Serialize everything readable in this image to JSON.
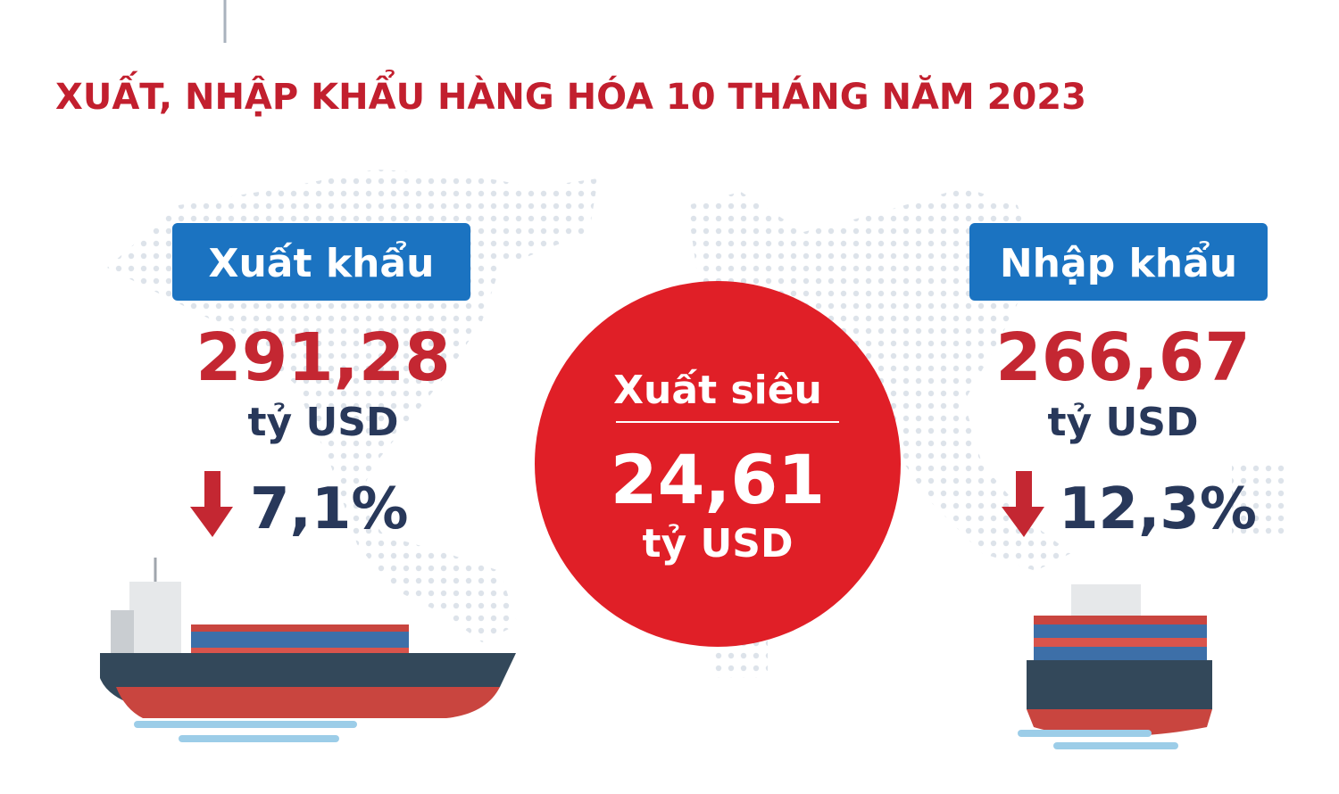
{
  "title": "XUẤT, NHẬP KHẨU HÀNG HÓA 10 THÁNG NĂM 2023",
  "export": {
    "label": "Xuất khẩu",
    "value": "291,28",
    "unit": "tỷ USD",
    "change": "7,1%"
  },
  "surplus": {
    "label": "Xuất siêu",
    "value": "24,61",
    "unit": "tỷ USD"
  },
  "import": {
    "label": "Nhập khẩu",
    "value": "266,67",
    "unit": "tỷ USD",
    "change": "12,3%"
  }
}
